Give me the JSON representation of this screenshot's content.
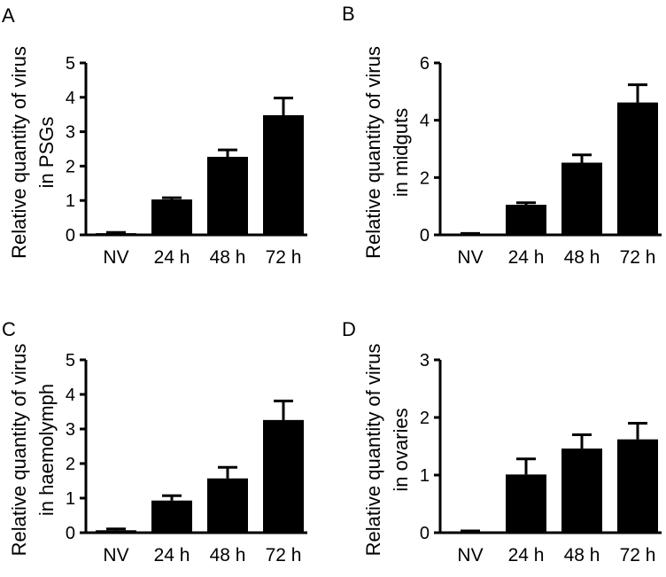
{
  "chart_data": [
    {
      "panel": "A",
      "type": "bar",
      "categories": [
        "NV",
        "24 h",
        "48 h",
        "72 h"
      ],
      "values": [
        0.05,
        1.03,
        2.27,
        3.48
      ],
      "errors": [
        0.02,
        0.05,
        0.2,
        0.5
      ],
      "ylabel_line1": "Relative quantity of virus",
      "ylabel_line2": "in PSGs",
      "ylim": [
        0,
        5
      ],
      "yticks": [
        0,
        1,
        2,
        3,
        4,
        5
      ],
      "bar_color": "#000000"
    },
    {
      "panel": "B",
      "type": "bar",
      "categories": [
        "NV",
        "24 h",
        "48 h",
        "72 h"
      ],
      "values": [
        0.03,
        1.05,
        2.52,
        4.62
      ],
      "errors": [
        0.02,
        0.07,
        0.27,
        0.62
      ],
      "ylabel_line1": "Relative quantity of virus",
      "ylabel_line2": "in midguts",
      "ylim": [
        0,
        6
      ],
      "yticks": [
        0,
        2,
        4,
        6
      ],
      "bar_color": "#000000"
    },
    {
      "panel": "C",
      "type": "bar",
      "categories": [
        "NV",
        "24 h",
        "48 h",
        "72 h"
      ],
      "values": [
        0.07,
        0.93,
        1.57,
        3.26
      ],
      "errors": [
        0.04,
        0.14,
        0.32,
        0.55
      ],
      "ylabel_line1": "Relative quantity of virus",
      "ylabel_line2": "in haemolymph",
      "ylim": [
        0,
        5
      ],
      "yticks": [
        0,
        1,
        2,
        3,
        4,
        5
      ],
      "bar_color": "#000000"
    },
    {
      "panel": "D",
      "type": "bar",
      "categories": [
        "NV",
        "24 h",
        "48 h",
        "72 h"
      ],
      "values": [
        0.02,
        1.01,
        1.46,
        1.62
      ],
      "errors": [
        0.01,
        0.27,
        0.24,
        0.28
      ],
      "ylabel_line1": "Relative quantity of virus",
      "ylabel_line2": "in ovaries",
      "ylim": [
        0,
        3
      ],
      "yticks": [
        0,
        1,
        2,
        3
      ],
      "bar_color": "#000000"
    }
  ]
}
